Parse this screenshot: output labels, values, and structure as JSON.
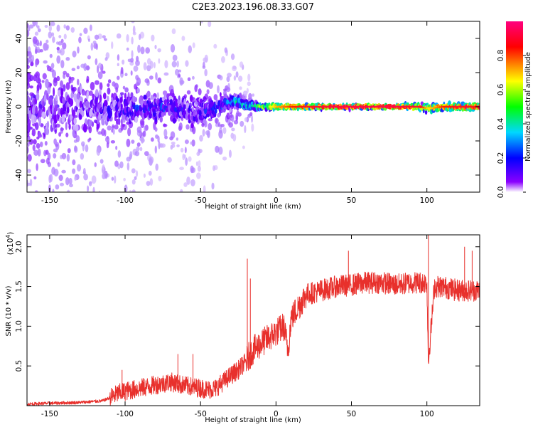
{
  "title": "C2E3.2023.196.08.33.G07",
  "colors": {
    "snr_line": "#e8302c",
    "frame": "#000000",
    "background": "#ffffff"
  },
  "chart_data": [
    {
      "type": "heatmap",
      "title": "C2E3.2023.196.08.33.G07",
      "xlabel": "Height of straight line (km)",
      "ylabel": "Frequency (Hz)",
      "xlim": [
        -165,
        135
      ],
      "ylim": [
        -50,
        50
      ],
      "x_ticks": [
        -150,
        -100,
        -50,
        0,
        50,
        100
      ],
      "y_ticks": [
        -40,
        -20,
        0,
        20,
        40
      ],
      "colorbar": {
        "label": "Normalized spectral amplitude",
        "range": [
          0,
          1
        ],
        "ticks": [
          0.0,
          0.2,
          0.4,
          0.6,
          0.8
        ],
        "colormap": [
          "#ffffff",
          "#7a00ff",
          "#0000ff",
          "#00d0ff",
          "#00ff00",
          "#ffff00",
          "#ff0000",
          "#ff007f"
        ]
      },
      "ridge": {
        "description_free": true,
        "x": [
          -165,
          -150,
          -130,
          -110,
          -90,
          -70,
          -55,
          -45,
          -35,
          -28,
          -20,
          -10,
          0,
          10,
          20,
          40,
          60,
          80,
          95,
          100,
          110,
          120,
          135
        ],
        "center_hz": [
          -1,
          -2,
          -1,
          -2,
          -1,
          0,
          -3,
          -2,
          1,
          3,
          1,
          0,
          0,
          0,
          0,
          0,
          0,
          0,
          0,
          -1,
          0,
          0,
          0
        ],
        "halfwidth_hz": [
          14,
          12,
          10,
          8,
          7,
          6,
          6,
          5,
          4,
          3,
          2,
          1.5,
          1.5,
          1.2,
          1,
          1,
          1,
          1,
          1.2,
          2,
          1.5,
          1.5,
          1.5
        ],
        "peak_amplitude": [
          0.05,
          0.08,
          0.12,
          0.2,
          0.25,
          0.25,
          0.2,
          0.25,
          0.3,
          0.4,
          0.5,
          0.6,
          0.75,
          0.85,
          0.9,
          0.95,
          0.95,
          0.95,
          0.9,
          0.7,
          0.85,
          0.9,
          0.9
        ]
      }
    },
    {
      "type": "line",
      "xlabel": "Height of straight line (km)",
      "ylabel": "SNR (10 * v/v)",
      "y_multiplier": "(x10",
      "y_multiplier_exp": "4",
      "y_multiplier_close": ")",
      "xlim": [
        -165,
        135
      ],
      "ylim": [
        0,
        2.15
      ],
      "x_ticks": [
        -150,
        -100,
        -50,
        0,
        50,
        100
      ],
      "y_ticks": [
        0.5,
        1.0,
        1.5,
        2.0
      ],
      "series": [
        {
          "x": [
            -165,
            -150,
            -130,
            -115,
            -110,
            -105,
            -100,
            -90,
            -80,
            -70,
            -60,
            -50,
            -45,
            -40,
            -35,
            -30,
            -25,
            -20,
            -18,
            -15,
            -10,
            -5,
            0,
            5,
            8,
            10,
            15,
            20,
            30,
            40,
            50,
            60,
            70,
            80,
            90,
            95,
            100,
            101,
            105,
            110,
            120,
            130,
            135
          ],
          "y": [
            0.02,
            0.03,
            0.04,
            0.06,
            0.1,
            0.15,
            0.18,
            0.22,
            0.26,
            0.3,
            0.25,
            0.22,
            0.2,
            0.22,
            0.3,
            0.38,
            0.45,
            0.55,
            0.62,
            0.7,
            0.78,
            0.85,
            0.92,
            1.0,
            0.7,
            1.1,
            1.25,
            1.4,
            1.45,
            1.5,
            1.52,
            1.55,
            1.55,
            1.52,
            1.55,
            1.55,
            1.55,
            0.55,
            1.5,
            1.5,
            1.45,
            1.45,
            1.45
          ]
        }
      ],
      "spikes": [
        {
          "x": -102,
          "y": 0.45
        },
        {
          "x": -65,
          "y": 0.65
        },
        {
          "x": -55,
          "y": 0.65
        },
        {
          "x": -19,
          "y": 1.85
        },
        {
          "x": -17,
          "y": 1.6
        },
        {
          "x": 101,
          "y": 2.15
        },
        {
          "x": 125,
          "y": 2.0
        },
        {
          "x": 130,
          "y": 1.95
        },
        {
          "x": 48,
          "y": 1.95
        }
      ]
    }
  ]
}
